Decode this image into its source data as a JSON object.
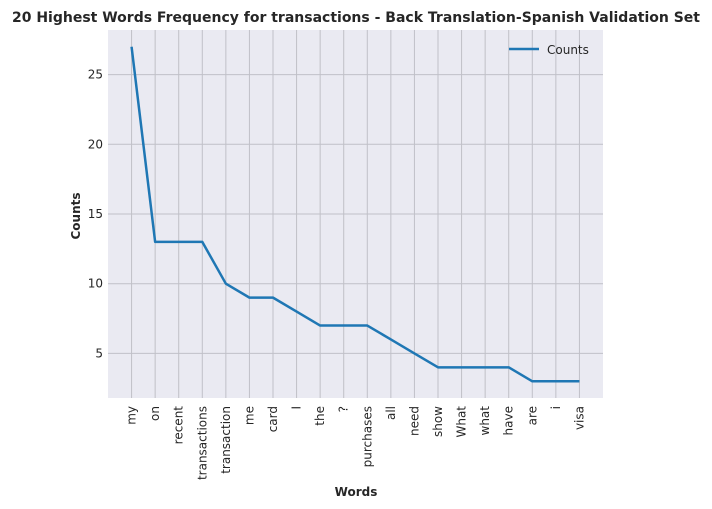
{
  "chart_data": {
    "type": "line",
    "title": "20 Highest Words Frequency for transactions - Back Translation-Spanish Validation Set",
    "xlabel": "Words",
    "ylabel": "Counts",
    "categories": [
      "my",
      "on",
      "recent",
      "transactions",
      "transaction",
      "me",
      "card",
      "I",
      "the",
      "?",
      "purchases",
      "all",
      "need",
      "show",
      "What",
      "what",
      "have",
      "are",
      "i",
      "visa"
    ],
    "series": [
      {
        "name": "Counts",
        "values": [
          27,
          13,
          13,
          13,
          10,
          9,
          9,
          8,
          7,
          7,
          7,
          6,
          5,
          4,
          4,
          4,
          4,
          3,
          3,
          3
        ],
        "color": "#1f77b4"
      }
    ],
    "ylim": [
      1.8,
      28.2
    ],
    "yticks": [
      5,
      10,
      15,
      20,
      25
    ],
    "grid": true,
    "legend_position": "top-right",
    "background": "#eaeaf2",
    "grid_color": "#c0c0c8"
  }
}
